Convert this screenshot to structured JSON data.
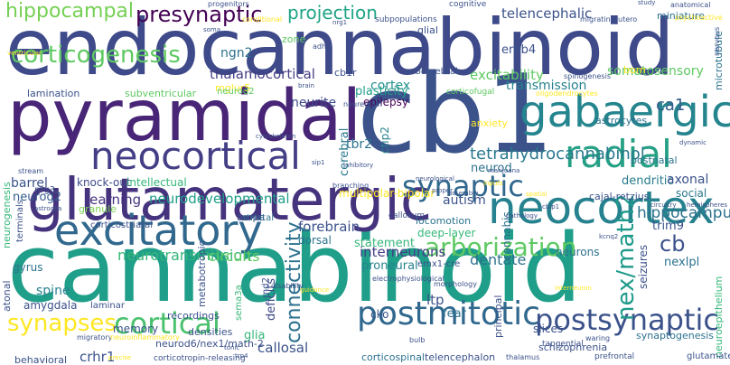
{
  "words": [
    {
      "text": "cannabinoid",
      "color": "#1f9e89"
    },
    {
      "text": "endocannabinoid",
      "color": "#3e4a89"
    },
    {
      "text": "pyramidal",
      "color": "#482576"
    },
    {
      "text": "cb1",
      "color": "#3b528b"
    },
    {
      "text": "glutamatergic",
      "color": "#46337e"
    },
    {
      "text": "neocortex",
      "color": "#26828e"
    },
    {
      "text": "excitatory",
      "color": "#31688e"
    },
    {
      "text": "gabaergic",
      "color": "#25858e"
    },
    {
      "text": "neocortical",
      "color": "#433e85"
    },
    {
      "text": "radial",
      "color": "#25a085"
    },
    {
      "text": "postmitotic",
      "color": "#31688e"
    },
    {
      "text": "cortical",
      "color": "#4ac16d"
    },
    {
      "text": "synaptic",
      "color": "#31688e"
    },
    {
      "text": "postsynaptic",
      "color": "#3b528b"
    },
    {
      "text": "corticogenesis",
      "color": "#5ec962"
    },
    {
      "text": "synapses",
      "color": "#fde725"
    },
    {
      "text": "arborization",
      "color": "#5ec962"
    },
    {
      "text": "presynaptic",
      "color": "#440154"
    },
    {
      "text": "hippocampal",
      "color": "#75d054"
    },
    {
      "text": "projection",
      "color": "#20a486"
    },
    {
      "text": "telencephalic",
      "color": "#3b528b"
    },
    {
      "text": "tetrahydrocannabinol",
      "color": "#2a788e"
    },
    {
      "text": "connectivity",
      "color": "#2c718e"
    },
    {
      "text": "nex/math2",
      "color": "#1f9a8a"
    },
    {
      "text": "hippocampus",
      "color": "#2c728e"
    },
    {
      "text": "ca1",
      "color": "#365d8d"
    },
    {
      "text": "cb",
      "color": "#3b528b"
    },
    {
      "text": "excitability",
      "color": "#5ec962"
    },
    {
      "text": "thalamocortical",
      "color": "#433e85"
    },
    {
      "text": "neurotransmission",
      "color": "#35b779"
    },
    {
      "text": "circuits",
      "color": "#5ec962"
    },
    {
      "text": "interneurons",
      "color": "#433e85"
    },
    {
      "text": "dentate",
      "color": "#2c728e"
    },
    {
      "text": "forebrain",
      "color": "#3b528b"
    },
    {
      "text": "cortex",
      "color": "#21918c"
    },
    {
      "text": "ltp",
      "color": "#3b528b"
    },
    {
      "text": "callosal",
      "color": "#3b528b"
    },
    {
      "text": "crhr1",
      "color": "#3b528b"
    },
    {
      "text": "proneural",
      "color": "#26828e"
    },
    {
      "text": "statement",
      "color": "#35b779"
    },
    {
      "text": "transmission",
      "color": "#26828e"
    },
    {
      "text": "somatosensory",
      "color": "#5ec962"
    },
    {
      "text": "neurodevelopmental",
      "color": "#1f9e89"
    },
    {
      "text": "learning",
      "color": "#46337e"
    },
    {
      "text": "barrel",
      "color": "#3b528b"
    },
    {
      "text": "neurog2",
      "color": "#365d8d"
    },
    {
      "text": "knock-out",
      "color": "#3e4a89"
    },
    {
      "text": "intellectual",
      "color": "#35b779"
    },
    {
      "text": "neurite",
      "color": "#3e4a89"
    },
    {
      "text": "plasticity",
      "color": "#1f9e89"
    },
    {
      "text": "epilepsy",
      "color": "#440154"
    },
    {
      "text": "neurod",
      "color": "#2c728e"
    },
    {
      "text": "autism",
      "color": "#3b528b"
    },
    {
      "text": "dendritic",
      "color": "#287c8e"
    },
    {
      "text": "axonal",
      "color": "#3b528b"
    },
    {
      "text": "social",
      "color": "#2a788e"
    },
    {
      "text": "trim9",
      "color": "#3b528b"
    },
    {
      "text": "nexlpl",
      "color": "#2c728e"
    },
    {
      "text": "spine",
      "color": "#26828e"
    },
    {
      "text": "amygdala",
      "color": "#3b528b"
    },
    {
      "text": "gyrus",
      "color": "#2c728e"
    },
    {
      "text": "memory",
      "color": "#3b528b"
    },
    {
      "text": "glia",
      "color": "#35b779"
    },
    {
      "text": "cerebral",
      "color": "#2a788e"
    },
    {
      "text": "deficits",
      "color": "#3e4a89"
    },
    {
      "text": "fear",
      "color": "#2c728e"
    },
    {
      "text": "cko",
      "color": "#3b528b"
    },
    {
      "text": "slices",
      "color": "#3b528b"
    },
    {
      "text": "cannabis",
      "color": "#2c728e"
    },
    {
      "text": "seizures",
      "color": "#3b528b"
    },
    {
      "text": "neurons",
      "color": "#2c728e"
    },
    {
      "text": "lamination",
      "color": "#3b528b"
    },
    {
      "text": "subventricular",
      "color": "#5ec962"
    },
    {
      "text": "ngn2",
      "color": "#2c728e"
    },
    {
      "text": "cb1r",
      "color": "#3b528b"
    },
    {
      "text": "tbr2",
      "color": "#2c728e"
    },
    {
      "text": "ctip2",
      "color": "#26828e"
    },
    {
      "text": "ampa",
      "color": "#3b528b"
    },
    {
      "text": "granule",
      "color": "#7ad151"
    },
    {
      "text": "mglur5",
      "color": "#fde725"
    },
    {
      "text": "neurod2",
      "color": "#5ec962"
    },
    {
      "text": "erbb4",
      "color": "#3b528b"
    },
    {
      "text": "zone",
      "color": "#5ec962"
    },
    {
      "text": "glial",
      "color": "#3b528b"
    },
    {
      "text": "born",
      "color": "#fde725"
    },
    {
      "text": "miniature",
      "color": "#2c728e"
    },
    {
      "text": "microtubule",
      "color": "#2c728e"
    },
    {
      "text": "astrocytes",
      "color": "#2c728e"
    },
    {
      "text": "anxiety",
      "color": "#fde725"
    },
    {
      "text": "multipolar-bipolar",
      "color": "#fde725"
    },
    {
      "text": "locomotion",
      "color": "#2c728e"
    },
    {
      "text": "deep-layer",
      "color": "#35b779"
    },
    {
      "text": "cajal-retzius",
      "color": "#3b528b"
    },
    {
      "text": "postnatal",
      "color": "#2c728e"
    },
    {
      "text": "synaptogenesis",
      "color": "#2c728e"
    },
    {
      "text": "principal",
      "color": "#3b528b"
    },
    {
      "text": "schizophrenia",
      "color": "#3b528b"
    },
    {
      "text": "telencephalon",
      "color": "#3b528b"
    },
    {
      "text": "corticospinal",
      "color": "#2c728e"
    },
    {
      "text": "neurod6/nex1/math-2",
      "color": "#3b528b"
    },
    {
      "text": "densities",
      "color": "#3b528b"
    },
    {
      "text": "metabotropic",
      "color": "#3b528b"
    },
    {
      "text": "recordings",
      "color": "#3b528b"
    },
    {
      "text": "laminar",
      "color": "#3b528b"
    },
    {
      "text": "neurogenesis",
      "color": "#35b779"
    },
    {
      "text": "terminals",
      "color": "#3b528b"
    },
    {
      "text": "atonal",
      "color": "#3b528b"
    },
    {
      "text": "behavioral",
      "color": "#3b528b"
    },
    {
      "text": "dorsal",
      "color": "#2c728e"
    },
    {
      "text": "emx1-cre",
      "color": "#3b528b"
    },
    {
      "text": "striatal",
      "color": "#2c728e"
    },
    {
      "text": "corticostriatal",
      "color": "#3b528b"
    },
    {
      "text": "nrg3",
      "color": "#3b528b"
    },
    {
      "text": "neuroepithelium",
      "color": "#35b779"
    },
    {
      "text": "glutamate",
      "color": "#3b528b"
    },
    {
      "text": "rnd2",
      "color": "#3b528b"
    },
    {
      "text": "sema3a",
      "color": "#35b779"
    },
    {
      "text": "subcerebral",
      "color": "#3b528b"
    },
    {
      "text": "cognitive",
      "color": "#3b528b"
    },
    {
      "text": "subpopulations",
      "color": "#3b528b"
    },
    {
      "text": "tangential",
      "color": "#3b528b"
    },
    {
      "text": "prefrontal",
      "color": "#3b528b"
    },
    {
      "text": "corticotropin-releasing",
      "color": "#3b528b"
    },
    {
      "text": "spinogenesis",
      "color": "#3b528b"
    },
    {
      "text": "corticofugal",
      "color": "#5ec962"
    },
    {
      "text": "oligodendrocytes",
      "color": "#fde725"
    },
    {
      "text": "neuregulin",
      "color": "#3b528b"
    },
    {
      "text": "callosum",
      "color": "#3b528b"
    },
    {
      "text": "electrophysiological",
      "color": "#3b528b"
    },
    {
      "text": "morphology",
      "color": "#3b528b"
    },
    {
      "text": "disability",
      "color": "#3b528b"
    },
    {
      "text": "branching",
      "color": "#3b528b"
    },
    {
      "text": "migratory",
      "color": "#3b528b"
    },
    {
      "text": "neuroinflammatory",
      "color": "#fde725"
    },
    {
      "text": "progenitors",
      "color": "#3b528b"
    },
    {
      "text": "conditional",
      "color": "#fde725"
    },
    {
      "text": "migrating",
      "color": "#3b528b"
    },
    {
      "text": "utero",
      "color": "#3b528b"
    },
    {
      "text": "psychoactive",
      "color": "#fde725"
    },
    {
      "text": "anatomical",
      "color": "#3b528b"
    },
    {
      "text": "nervous",
      "color": "#3b528b"
    },
    {
      "text": "stream",
      "color": "#3b528b"
    },
    {
      "text": "cytoskeleton",
      "color": "#3b528b"
    },
    {
      "text": "neurological",
      "color": "#3b528b"
    },
    {
      "text": "brain",
      "color": "#3b528b"
    },
    {
      "text": "adhd",
      "color": "#3b528b"
    },
    {
      "text": "thalamus",
      "color": "#3b528b"
    },
    {
      "text": "proper",
      "color": "#3b528b"
    },
    {
      "text": "inputs",
      "color": "#fde725"
    },
    {
      "text": "assembly",
      "color": "#3b528b"
    },
    {
      "text": "bulb",
      "color": "#3b528b"
    },
    {
      "text": "waring",
      "color": "#3b528b"
    },
    {
      "text": "astroglia",
      "color": "#3b528b"
    },
    {
      "text": "ventricular",
      "color": "#fde725"
    },
    {
      "text": "soma",
      "color": "#3b528b"
    },
    {
      "text": "marijuana",
      "color": "#3b528b"
    },
    {
      "text": "guidance",
      "color": "#fde725"
    },
    {
      "text": "circuitry",
      "color": "#3b528b"
    },
    {
      "text": "hemispheres",
      "color": "#3b528b"
    },
    {
      "text": "tonic",
      "color": "#3b528b"
    },
    {
      "text": "precise",
      "color": "#fde725"
    },
    {
      "text": "kcnq2",
      "color": "#3b528b"
    },
    {
      "text": "nrg1",
      "color": "#3b528b"
    },
    {
      "text": "sip1",
      "color": "#3b528b"
    },
    {
      "text": "trp4",
      "color": "#3b528b"
    },
    {
      "text": "cbip1",
      "color": "#3b528b"
    },
    {
      "text": "study",
      "color": "#3b528b"
    },
    {
      "text": "inhibitory",
      "color": "#3b528b"
    },
    {
      "text": "pathology",
      "color": "#3b528b"
    },
    {
      "text": "spatial",
      "color": "#fde725"
    },
    {
      "text": "dynamic",
      "color": "#3b528b"
    },
    {
      "text": "interneuron",
      "color": "#fde725"
    }
  ]
}
